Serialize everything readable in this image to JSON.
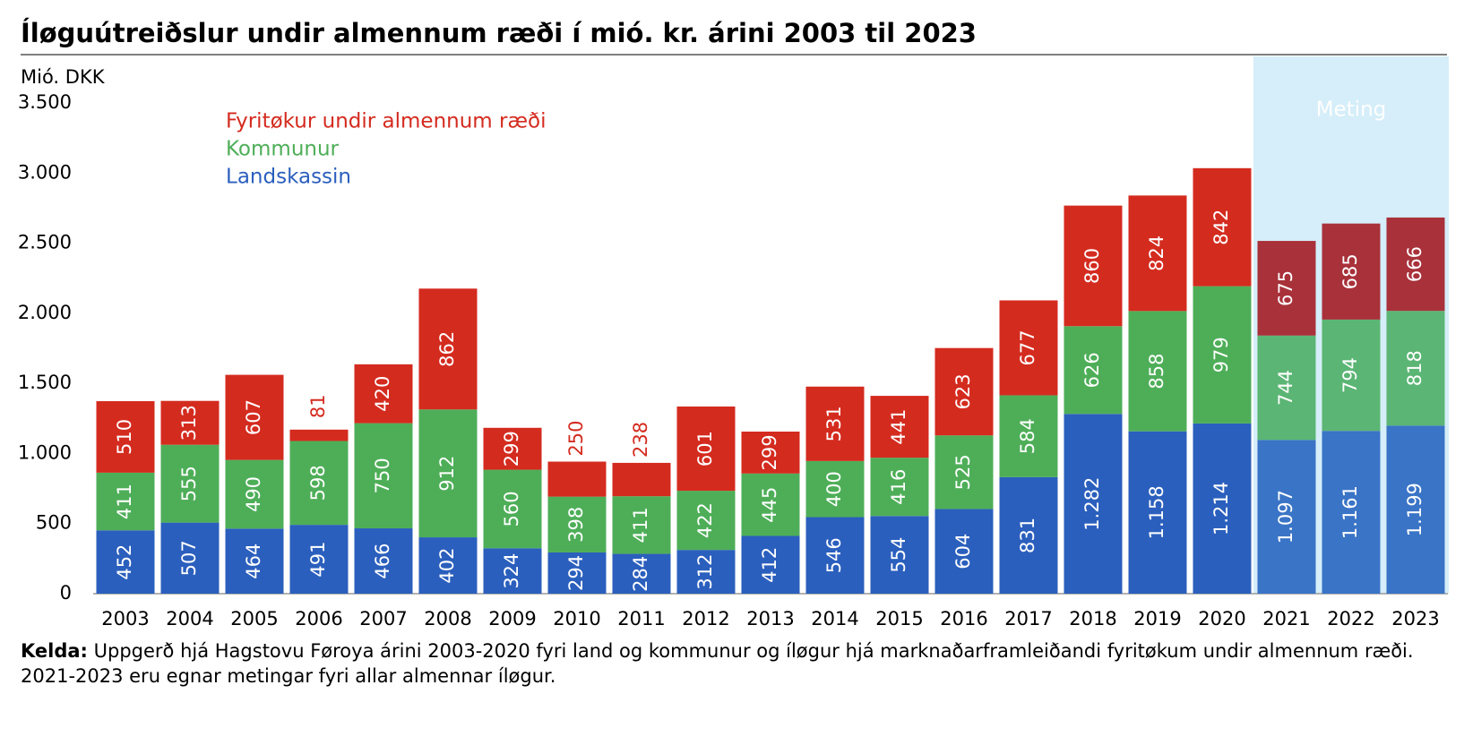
{
  "chart_data": {
    "type": "stacked_bar",
    "title": "Íløguútreiðslur undir almennum ræði í mió. kr. árini 2003 til 2023",
    "y_axis_label": "Mió. DKK",
    "categories": [
      "2003",
      "2004",
      "2005",
      "2006",
      "2007",
      "2008",
      "2009",
      "2010",
      "2011",
      "2012",
      "2013",
      "2014",
      "2015",
      "2016",
      "2017",
      "2018",
      "2019",
      "2020",
      "2021",
      "2022",
      "2023"
    ],
    "series": [
      {
        "name": "Landskassin",
        "color": "#2b5fbd",
        "estimate_color": "#3a74c6",
        "values": [
          452,
          507,
          464,
          491,
          466,
          402,
          324,
          294,
          284,
          312,
          412,
          546,
          554,
          604,
          831,
          1282,
          1158,
          1214,
          1097,
          1161,
          1199
        ],
        "value_labels": [
          "452",
          "507",
          "464",
          "491",
          "466",
          "402",
          "324",
          "294",
          "284",
          "312",
          "412",
          "546",
          "554",
          "604",
          "831",
          "1.282",
          "1.158",
          "1.214",
          "1.097",
          "1.161",
          "1.199"
        ]
      },
      {
        "name": "Kommunur",
        "color": "#4eae58",
        "estimate_color": "#5bb574",
        "values": [
          411,
          555,
          490,
          598,
          750,
          912,
          560,
          398,
          411,
          422,
          445,
          400,
          416,
          525,
          584,
          626,
          858,
          979,
          744,
          794,
          818
        ]
      },
      {
        "name": "Fyritøkur undir almennum ræði",
        "color": "#d42b1f",
        "estimate_color": "#a8313a",
        "values": [
          510,
          313,
          607,
          81,
          420,
          862,
          299,
          250,
          238,
          601,
          299,
          531,
          441,
          623,
          677,
          860,
          824,
          842,
          675,
          685,
          666
        ]
      }
    ],
    "ylim": [
      0,
      3500
    ],
    "yticks": [
      0,
      500,
      {
        "value": 1000,
        "label": "1.000"
      },
      {
        "value": 1500,
        "label": "1.500"
      },
      {
        "value": 2000,
        "label": "2.000"
      },
      {
        "value": 2500,
        "label": "2.500"
      },
      {
        "value": 3000,
        "label": "3.000"
      },
      {
        "value": 3500,
        "label": "3.500"
      }
    ],
    "shaded_region": {
      "label": "Meting",
      "from": "2021",
      "to": "2023",
      "color": "#d5eef9"
    },
    "source_label": "Kelda:",
    "source_text": "Uppgerð hjá Hagstovu Føroya árini 2003-2020 fyri land og kommunur og íløgur hjá marknaðarframleiðandi fyritøkum undir almennum ræði. 2021-2023 eru egnar metingar fyri allar almennar íløgur."
  }
}
